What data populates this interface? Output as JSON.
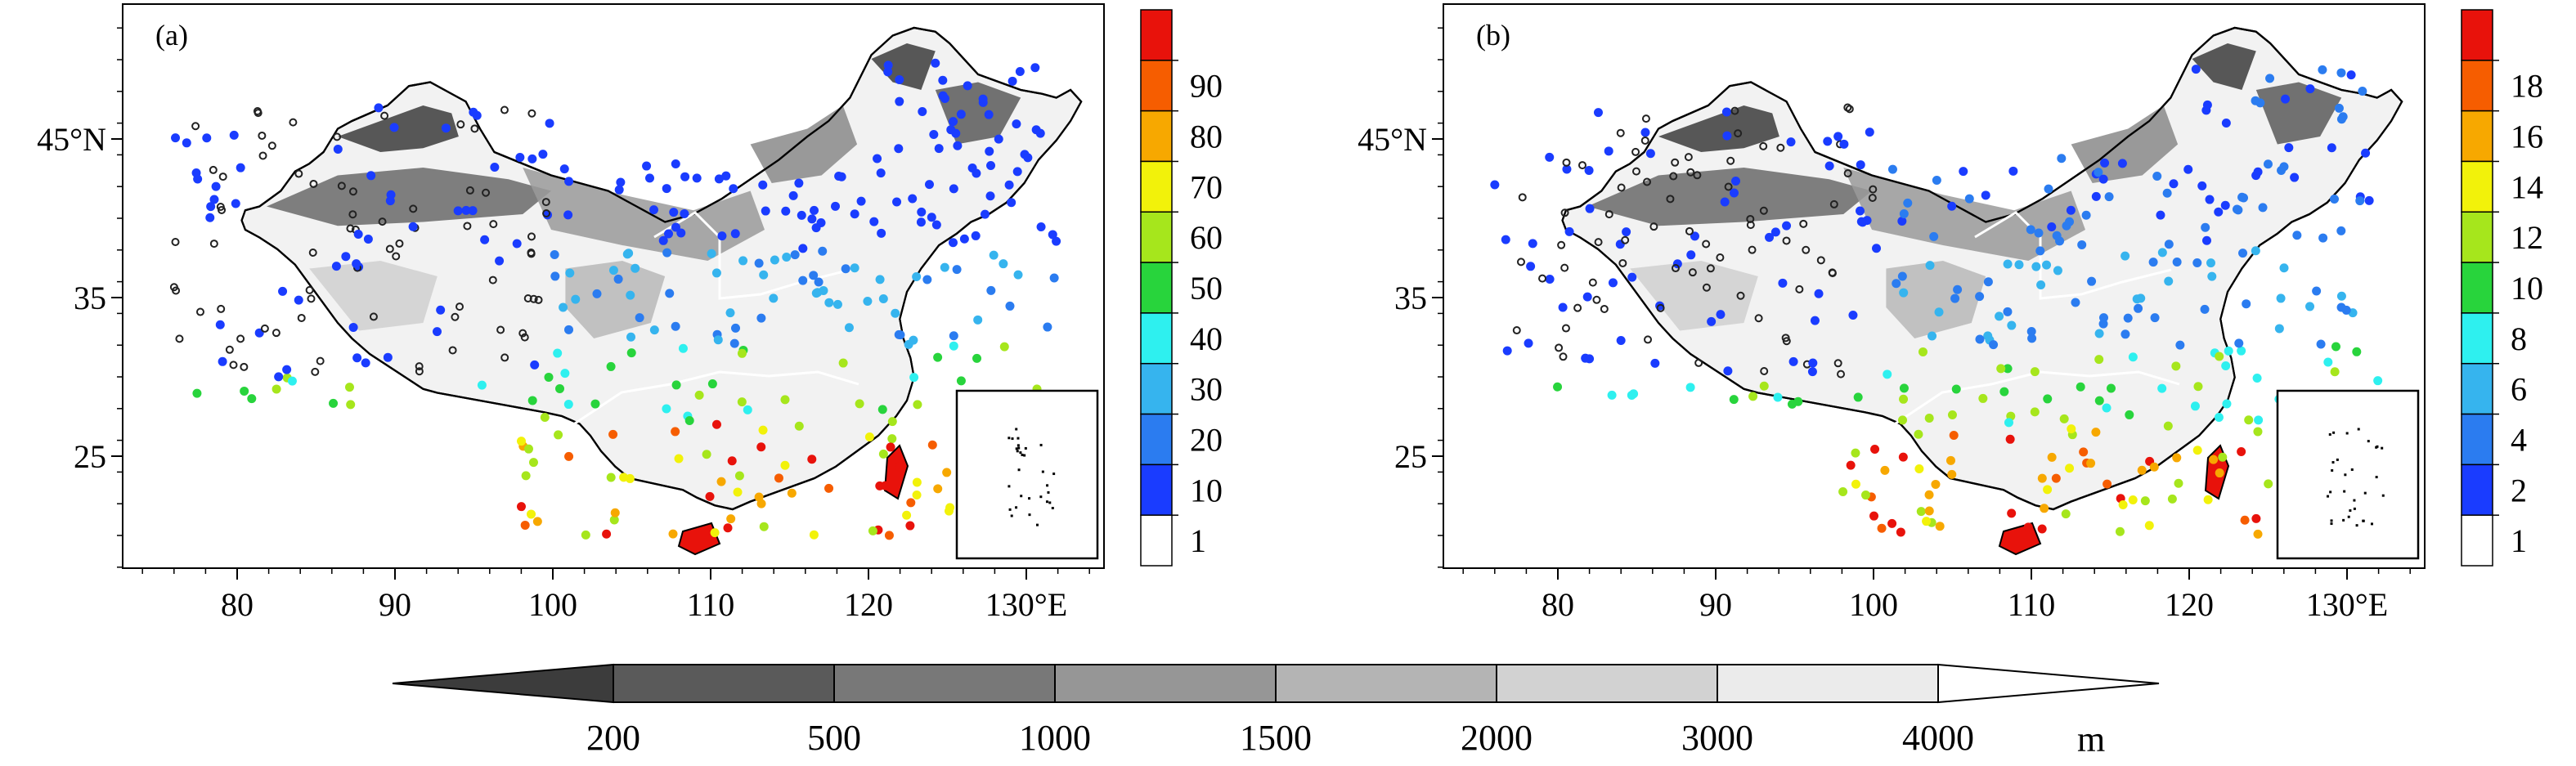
{
  "panels": [
    {
      "label": "(a)",
      "colorbar_ticks": [
        "1",
        "10",
        "20",
        "30",
        "40",
        "50",
        "60",
        "70",
        "80",
        "90"
      ],
      "colorbar_colors": [
        "#ffffff",
        "#1a3cff",
        "#2b7cf0",
        "#36b4ee",
        "#2ef0ef",
        "#28d43c",
        "#a6e61c",
        "#f2f20a",
        "#f7a800",
        "#f65d00",
        "#e8120b"
      ]
    },
    {
      "label": "(b)",
      "colorbar_ticks": [
        "1",
        "2",
        "4",
        "6",
        "8",
        "10",
        "12",
        "14",
        "16",
        "18"
      ],
      "colorbar_colors": [
        "#ffffff",
        "#1a3cff",
        "#2b7cf0",
        "#36b4ee",
        "#2ef0ef",
        "#28d43c",
        "#a6e61c",
        "#f2f20a",
        "#f7a800",
        "#f65d00",
        "#e8120b"
      ]
    }
  ],
  "axes": {
    "x_ticks": [
      "80",
      "90",
      "100",
      "110",
      "120",
      "130°E"
    ],
    "y_ticks": [
      "45°N",
      "35",
      "25"
    ]
  },
  "elevation_legend": {
    "ticks": [
      "200",
      "500",
      "1000",
      "1500",
      "2000",
      "3000",
      "4000"
    ],
    "unit": "m",
    "colors": [
      "#3c3c3c",
      "#5a5a5a",
      "#787878",
      "#969696",
      "#b4b4b4",
      "#d2d2d2",
      "#ebebeb",
      "#ffffff"
    ]
  }
}
